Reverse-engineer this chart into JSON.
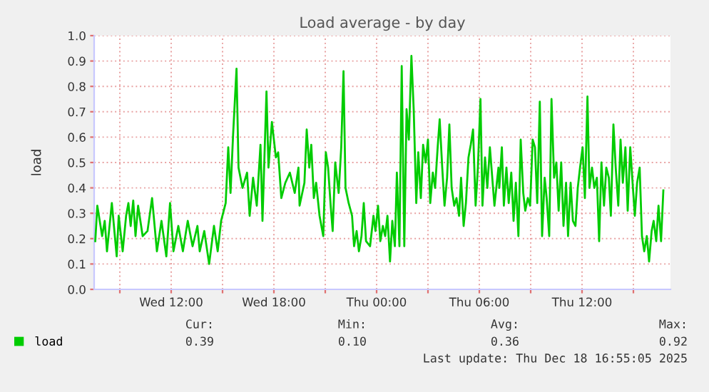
{
  "chart_data": {
    "type": "line",
    "title": "Load average - by day",
    "ylabel": "load",
    "x": [
      "2025-12-17T07:34",
      "2025-12-17T07:41",
      "2025-12-17T07:58",
      "2025-12-17T08:07",
      "2025-12-17T08:15",
      "2025-12-17T08:32",
      "2025-12-17T08:49",
      "2025-12-17T08:56",
      "2025-12-17T09:10",
      "2025-12-17T09:22",
      "2025-12-17T09:30",
      "2025-12-17T09:38",
      "2025-12-17T09:47",
      "2025-12-17T09:55",
      "2025-12-17T10:04",
      "2025-12-17T10:20",
      "2025-12-17T10:37",
      "2025-12-17T10:53",
      "2025-12-17T11:10",
      "2025-12-17T11:26",
      "2025-12-17T11:43",
      "2025-12-17T11:56",
      "2025-12-17T12:08",
      "2025-12-17T12:25",
      "2025-12-17T12:41",
      "2025-12-17T12:58",
      "2025-12-17T13:15",
      "2025-12-17T13:32",
      "2025-12-17T13:40",
      "2025-12-17T13:56",
      "2025-12-17T14:13",
      "2025-12-17T14:30",
      "2025-12-17T14:43",
      "2025-12-17T14:55",
      "2025-12-17T15:11",
      "2025-12-17T15:20",
      "2025-12-17T15:28",
      "2025-12-17T15:37",
      "2025-12-17T15:49",
      "2025-12-17T15:56",
      "2025-12-17T16:10",
      "2025-12-17T16:26",
      "2025-12-17T16:35",
      "2025-12-17T16:47",
      "2025-12-17T17:00",
      "2025-12-17T17:13",
      "2025-12-17T17:20",
      "2025-12-17T17:34",
      "2025-12-17T17:41",
      "2025-12-17T17:53",
      "2025-12-17T18:07",
      "2025-12-17T18:15",
      "2025-12-17T18:26",
      "2025-12-17T18:40",
      "2025-12-17T18:56",
      "2025-12-17T19:13",
      "2025-12-17T19:26",
      "2025-12-17T19:30",
      "2025-12-17T19:47",
      "2025-12-17T19:55",
      "2025-12-17T20:04",
      "2025-12-17T20:11",
      "2025-12-17T20:20",
      "2025-12-17T20:28",
      "2025-12-17T20:40",
      "2025-12-17T20:53",
      "2025-12-17T21:02",
      "2025-12-17T21:10",
      "2025-12-17T21:19",
      "2025-12-17T21:26",
      "2025-12-17T21:35",
      "2025-12-17T21:47",
      "2025-12-17T21:56",
      "2025-12-17T22:04",
      "2025-12-17T22:11",
      "2025-12-17T22:22",
      "2025-12-17T22:34",
      "2025-12-17T22:41",
      "2025-12-17T22:50",
      "2025-12-17T22:58",
      "2025-12-17T23:07",
      "2025-12-17T23:15",
      "2025-12-17T23:23",
      "2025-12-17T23:37",
      "2025-12-17T23:49",
      "2025-12-17T23:56",
      "2025-12-18T00:05",
      "2025-12-18T00:13",
      "2025-12-18T00:22",
      "2025-12-18T00:30",
      "2025-12-18T00:38",
      "2025-12-18T00:47",
      "2025-12-18T00:55",
      "2025-12-18T01:04",
      "2025-12-18T01:11",
      "2025-12-18T01:20",
      "2025-12-18T01:28",
      "2025-12-18T01:37",
      "2025-12-18T01:45",
      "2025-12-18T01:53",
      "2025-12-18T02:02",
      "2025-12-18T02:10",
      "2025-12-18T02:19",
      "2025-12-18T02:26",
      "2025-12-18T02:35",
      "2025-12-18T02:43",
      "2025-12-18T02:52",
      "2025-12-18T03:00",
      "2025-12-18T03:08",
      "2025-12-18T03:17",
      "2025-12-18T03:25",
      "2025-12-18T03:34",
      "2025-12-18T03:41",
      "2025-12-18T03:50",
      "2025-12-18T03:58",
      "2025-12-18T04:07",
      "2025-12-18T04:15",
      "2025-12-18T04:23",
      "2025-12-18T04:32",
      "2025-12-18T04:40",
      "2025-12-18T04:49",
      "2025-12-18T04:56",
      "2025-12-18T05:05",
      "2025-12-18T05:13",
      "2025-12-18T05:22",
      "2025-12-18T05:30",
      "2025-12-18T05:38",
      "2025-12-18T05:47",
      "2025-12-18T05:55",
      "2025-12-18T06:04",
      "2025-12-18T06:11",
      "2025-12-18T06:20",
      "2025-12-18T06:28",
      "2025-12-18T06:37",
      "2025-12-18T06:53",
      "2025-12-18T07:07",
      "2025-12-18T07:10",
      "2025-12-18T07:19",
      "2025-12-18T07:26",
      "2025-12-18T07:35",
      "2025-12-18T07:43",
      "2025-12-18T07:52",
      "2025-12-18T08:00",
      "2025-12-18T08:08",
      "2025-12-18T08:17",
      "2025-12-18T08:25",
      "2025-12-18T08:34",
      "2025-12-18T08:41",
      "2025-12-18T08:50",
      "2025-12-18T08:58",
      "2025-12-18T09:07",
      "2025-12-18T09:15",
      "2025-12-18T09:23",
      "2025-12-18T09:32",
      "2025-12-18T09:40",
      "2025-12-18T09:49",
      "2025-12-18T09:56",
      "2025-12-18T10:05",
      "2025-12-18T10:13",
      "2025-12-18T10:22",
      "2025-12-18T10:30",
      "2025-12-18T10:38",
      "2025-12-18T10:47",
      "2025-12-18T10:55",
      "2025-12-18T11:04",
      "2025-12-18T11:11",
      "2025-12-18T11:20",
      "2025-12-18T11:28",
      "2025-12-18T11:37",
      "2025-12-18T11:45",
      "2025-12-18T11:53",
      "2025-12-18T12:02",
      "2025-12-18T12:10",
      "2025-12-18T12:19",
      "2025-12-18T12:26",
      "2025-12-18T12:35",
      "2025-12-18T12:43",
      "2025-12-18T12:52",
      "2025-12-18T13:00",
      "2025-12-18T13:08",
      "2025-12-18T13:17",
      "2025-12-18T13:25",
      "2025-12-18T13:34",
      "2025-12-18T13:41",
      "2025-12-18T13:50",
      "2025-12-18T13:58",
      "2025-12-18T14:07",
      "2025-12-18T14:15",
      "2025-12-18T14:23",
      "2025-12-18T14:32",
      "2025-12-18T14:40",
      "2025-12-18T14:49",
      "2025-12-18T14:56",
      "2025-12-18T15:05",
      "2025-12-18T15:13",
      "2025-12-18T15:22",
      "2025-12-18T15:30",
      "2025-12-18T15:38",
      "2025-12-18T15:47",
      "2025-12-18T15:55",
      "2025-12-18T16:04",
      "2025-12-18T16:11",
      "2025-12-18T16:20",
      "2025-12-18T16:28",
      "2025-12-18T16:37",
      "2025-12-18T16:45"
    ],
    "series": [
      {
        "name": "load",
        "color": "#00cc00",
        "values": [
          0.19,
          0.33,
          0.21,
          0.27,
          0.15,
          0.34,
          0.13,
          0.29,
          0.15,
          0.29,
          0.34,
          0.25,
          0.35,
          0.21,
          0.33,
          0.21,
          0.23,
          0.36,
          0.15,
          0.27,
          0.13,
          0.34,
          0.15,
          0.25,
          0.15,
          0.27,
          0.17,
          0.25,
          0.15,
          0.23,
          0.1,
          0.25,
          0.15,
          0.27,
          0.34,
          0.56,
          0.38,
          0.61,
          0.87,
          0.48,
          0.4,
          0.46,
          0.29,
          0.44,
          0.33,
          0.57,
          0.27,
          0.78,
          0.48,
          0.66,
          0.52,
          0.54,
          0.36,
          0.42,
          0.46,
          0.38,
          0.48,
          0.33,
          0.42,
          0.63,
          0.48,
          0.57,
          0.36,
          0.42,
          0.29,
          0.21,
          0.54,
          0.48,
          0.33,
          0.23,
          0.5,
          0.38,
          0.56,
          0.86,
          0.4,
          0.34,
          0.29,
          0.17,
          0.23,
          0.15,
          0.21,
          0.34,
          0.19,
          0.17,
          0.29,
          0.23,
          0.33,
          0.19,
          0.25,
          0.21,
          0.29,
          0.11,
          0.27,
          0.17,
          0.46,
          0.17,
          0.88,
          0.17,
          0.71,
          0.59,
          0.92,
          0.71,
          0.34,
          0.54,
          0.36,
          0.57,
          0.5,
          0.59,
          0.34,
          0.46,
          0.4,
          0.56,
          0.67,
          0.48,
          0.33,
          0.44,
          0.65,
          0.4,
          0.33,
          0.36,
          0.29,
          0.44,
          0.25,
          0.34,
          0.52,
          0.57,
          0.63,
          0.33,
          0.48,
          0.75,
          0.33,
          0.52,
          0.4,
          0.56,
          0.33,
          0.48,
          0.4,
          0.56,
          0.33,
          0.48,
          0.34,
          0.46,
          0.27,
          0.42,
          0.21,
          0.59,
          0.38,
          0.31,
          0.36,
          0.33,
          0.59,
          0.56,
          0.34,
          0.74,
          0.21,
          0.44,
          0.36,
          0.21,
          0.75,
          0.44,
          0.5,
          0.31,
          0.5,
          0.25,
          0.42,
          0.21,
          0.42,
          0.27,
          0.25,
          0.4,
          0.48,
          0.56,
          0.36,
          0.76,
          0.4,
          0.48,
          0.4,
          0.44,
          0.19,
          0.5,
          0.33,
          0.48,
          0.44,
          0.29,
          0.65,
          0.48,
          0.33,
          0.59,
          0.42,
          0.56,
          0.31,
          0.56,
          0.44,
          0.29,
          0.42,
          0.48,
          0.21,
          0.15,
          0.21,
          0.11,
          0.23,
          0.27,
          0.19,
          0.33,
          0.19,
          0.39
        ]
      }
    ],
    "xlim": [
      "2025-12-17T07:30",
      "2025-12-18T17:10"
    ],
    "xticks": [
      {
        "value": "2025-12-17T09:00",
        "label": null
      },
      {
        "value": "2025-12-17T12:00",
        "label": "Wed 12:00"
      },
      {
        "value": "2025-12-17T15:00",
        "label": null
      },
      {
        "value": "2025-12-17T18:00",
        "label": "Wed 18:00"
      },
      {
        "value": "2025-12-17T21:00",
        "label": null
      },
      {
        "value": "2025-12-18T00:00",
        "label": "Thu 00:00"
      },
      {
        "value": "2025-12-18T03:00",
        "label": null
      },
      {
        "value": "2025-12-18T06:00",
        "label": "Thu 06:00"
      },
      {
        "value": "2025-12-18T09:00",
        "label": null
      },
      {
        "value": "2025-12-18T12:00",
        "label": "Thu 12:00"
      },
      {
        "value": "2025-12-18T15:00",
        "label": null
      }
    ],
    "ylim": [
      0,
      1.0
    ],
    "yticks": [
      {
        "value": 0,
        "label": "0.0"
      },
      0.1,
      0.2,
      0.3,
      0.4,
      0.5,
      0.6,
      0.7,
      0.8,
      0.9,
      {
        "value": 1.0,
        "label": "1.0"
      }
    ],
    "grid": true,
    "legend": "bottom",
    "marker": "none",
    "line_style": "solid",
    "annotations": [
      "Cur:",
      "0.39",
      "Min:",
      "0.10",
      "Avg:",
      "0.36",
      "Max:",
      "0.92",
      "Last update: Thu Dec 18 16:55:05 2025"
    ]
  }
}
